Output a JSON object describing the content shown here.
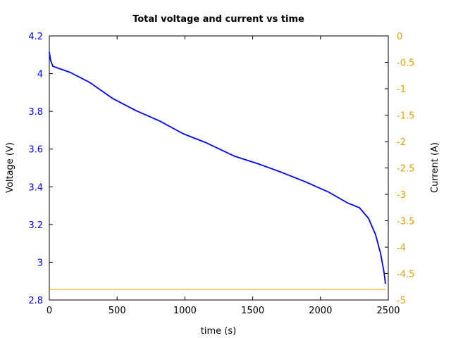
{
  "chart_data": {
    "type": "line",
    "title": "Total voltage and current vs time",
    "xlabel": "time (s)",
    "ylabel": "Voltage (V)",
    "y2label": "Current (A)",
    "xlim": [
      0,
      2500
    ],
    "ylim": [
      2.8,
      4.2
    ],
    "y2lim": [
      -5,
      0
    ],
    "grid": false,
    "legend": null,
    "x_ticks": [
      "0",
      "500",
      "1000",
      "1500",
      "2000",
      "2500"
    ],
    "y_ticks": [
      "2.8",
      "3",
      "3.2",
      "3.4",
      "3.6",
      "3.8",
      "4",
      "4.2"
    ],
    "y2_ticks": [
      "-5",
      "-4.5",
      "-4",
      "-3.5",
      "-3",
      "-2.5",
      "-2",
      "-1.5",
      "-1",
      "-0.5",
      "0"
    ],
    "series": [
      {
        "name": "Voltage",
        "axis": "left",
        "color": "#0000ff",
        "x": [
          0,
          10,
          26,
          156,
          296,
          468,
          639,
          816,
          988,
          1159,
          1367,
          1544,
          1715,
          1887,
          2063,
          2199,
          2287,
          2354,
          2406,
          2443,
          2469,
          2479
        ],
        "values": [
          4.114,
          4.069,
          4.039,
          4.006,
          3.954,
          3.868,
          3.804,
          3.748,
          3.681,
          3.633,
          3.562,
          3.521,
          3.476,
          3.427,
          3.371,
          3.315,
          3.289,
          3.233,
          3.147,
          3.047,
          2.946,
          2.886
        ]
      },
      {
        "name": "Current",
        "axis": "right",
        "color": "#e69f00",
        "x": [
          0,
          2479
        ],
        "values": [
          -4.8,
          -4.8
        ]
      }
    ]
  }
}
